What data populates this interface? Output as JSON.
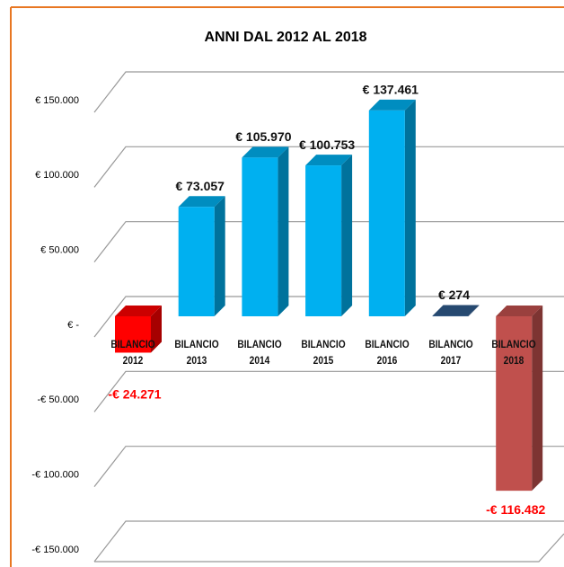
{
  "chart_data": {
    "type": "bar3d",
    "title": "ANNI DAL  2012 AL 2018",
    "categories": [
      "BILANCIO 2012",
      "BILANCIO 2013",
      "BILANCIO 2014",
      "BILANCIO 2015",
      "BILANCIO 2016",
      "BILANCIO 2017",
      "BILANCIO 2018"
    ],
    "values": [
      -24271,
      73057,
      105970,
      100753,
      137461,
      274,
      -116482
    ],
    "value_labels": [
      "-€ 24.271",
      "€ 73.057",
      "€ 105.970",
      "€ 100.753",
      "€ 137.461",
      "€ 274",
      "-€ 116.482"
    ],
    "colors": [
      "#ff0000",
      "#00b0f0",
      "#00b0f0",
      "#00b0f0",
      "#00b0f0",
      "#2f5b8c",
      "#c0504d"
    ],
    "ylim": [
      -150000,
      150000
    ],
    "yticks": [
      {
        "value": -150000,
        "label": "-€ 150.000"
      },
      {
        "value": -100000,
        "label": "-€ 100.000"
      },
      {
        "value": -50000,
        "label": "-€ 50.000"
      },
      {
        "value": 0,
        "label": "€ -"
      },
      {
        "value": 50000,
        "label": "€ 50.000"
      },
      {
        "value": 100000,
        "label": "€ 100.000"
      },
      {
        "value": 150000,
        "label": "€ 150.000"
      }
    ],
    "grid": true
  }
}
